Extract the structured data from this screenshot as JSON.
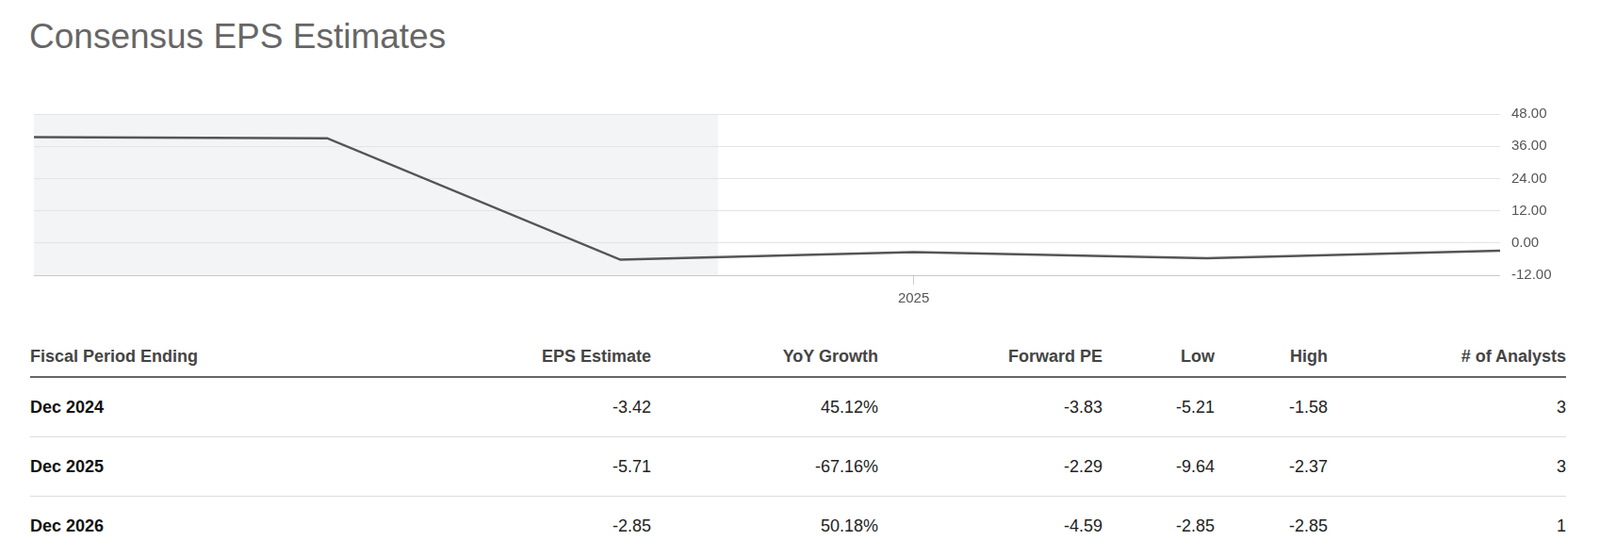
{
  "chart_data": {
    "type": "line",
    "title": "Consensus EPS Estimates",
    "categories": [
      null,
      null,
      null,
      "2025",
      null,
      null
    ],
    "values": [
      39.4,
      39.0,
      -6.23,
      -3.42,
      -5.71,
      -2.85
    ],
    "color": "#555555",
    "ylim": [
      -12,
      48
    ],
    "yticks": [
      {
        "value": -12,
        "label": "-12.00"
      },
      {
        "value": 0,
        "label": "0.00"
      },
      {
        "value": 12,
        "label": "12.00"
      },
      {
        "value": 24,
        "label": "24.00"
      },
      {
        "value": 36,
        "label": "36.00"
      },
      {
        "value": 48,
        "label": "48.00"
      }
    ],
    "grid": true
  },
  "table": {
    "columns": [
      "Fiscal Period Ending",
      "EPS Estimate",
      "YoY Growth",
      "Forward PE",
      "Low",
      "High",
      "# of Analysts"
    ],
    "rows": [
      [
        "Dec 2024",
        "-3.42",
        "45.12%",
        "-3.83",
        "-5.21",
        "-1.58",
        "3"
      ],
      [
        "Dec 2025",
        "-5.71",
        "-67.16%",
        "-2.29",
        "-9.64",
        "-2.37",
        "3"
      ],
      [
        "Dec 2026",
        "-2.85",
        "50.18%",
        "-4.59",
        "-2.85",
        "-2.85",
        "1"
      ]
    ]
  }
}
